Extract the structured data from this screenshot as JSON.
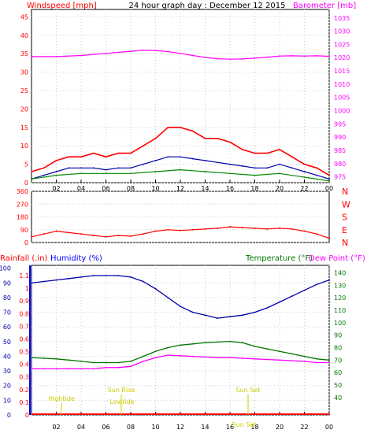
{
  "chart_data": [
    {
      "type": "line",
      "title": "24 hour graph day : December 12 2015",
      "left_axis_label": "Windspeed [mph]",
      "right_axis_label": "Barometer [mb]",
      "x_ticks": [
        "02",
        "04",
        "06",
        "08",
        "10",
        "12",
        "14",
        "16",
        "18",
        "20",
        "22",
        "00"
      ],
      "left_ticks": [
        0,
        5,
        10,
        15,
        20,
        25,
        30,
        35,
        40,
        45
      ],
      "right_ticks": [
        975,
        980,
        985,
        990,
        995,
        1000,
        1005,
        1010,
        1015,
        1020,
        1025,
        1030,
        1035
      ],
      "ylim_left": [
        0,
        47
      ],
      "ylim_right": [
        972.8,
        1038.2
      ],
      "x_range": [
        0,
        24
      ],
      "series": [
        {
          "color": "#ff00ff",
          "axis": "right",
          "x": [
            0,
            2,
            4,
            6,
            8,
            9,
            10,
            11,
            12,
            13,
            14,
            15,
            16,
            17,
            18,
            19,
            20,
            21,
            22,
            23,
            24
          ],
          "y": [
            1020.4,
            1020.4,
            1020.8,
            1021.6,
            1022.4,
            1022.8,
            1022.7,
            1022.3,
            1021.6,
            1020.8,
            1020.1,
            1019.6,
            1019.4,
            1019.5,
            1019.8,
            1020.2,
            1020.6,
            1020.7,
            1020.6,
            1020.7,
            1020.5
          ]
        },
        {
          "color": "#ff0000",
          "axis": "left",
          "x": [
            0,
            1,
            2,
            3,
            4,
            5,
            6,
            7,
            8,
            9,
            10,
            11,
            12,
            13,
            14,
            15,
            16,
            17,
            18,
            19,
            20,
            21,
            22,
            23,
            24
          ],
          "y": [
            3,
            4,
            6,
            7,
            7,
            8,
            7,
            8,
            8,
            10,
            12,
            15,
            15,
            14,
            12,
            12,
            11,
            9,
            8,
            8,
            9,
            7,
            5,
            4,
            2
          ]
        },
        {
          "color": "#0000aa",
          "axis": "left",
          "x": [
            0,
            1,
            2,
            3,
            4,
            5,
            6,
            7,
            8,
            9,
            10,
            11,
            12,
            13,
            14,
            15,
            16,
            17,
            18,
            19,
            20,
            21,
            22,
            23,
            24
          ],
          "y": [
            1,
            2,
            3,
            4,
            4,
            4,
            3.5,
            4,
            4,
            5,
            6,
            7,
            7,
            6.5,
            6,
            5.5,
            5,
            4.5,
            4,
            4,
            5,
            4,
            3,
            2,
            1
          ]
        },
        {
          "color": "#008800",
          "axis": "left",
          "x": [
            0,
            2,
            4,
            6,
            8,
            10,
            12,
            14,
            16,
            18,
            20,
            22,
            24
          ],
          "y": [
            1,
            2,
            2.5,
            2.5,
            2.5,
            3,
            3.5,
            3,
            2.5,
            2,
            2.5,
            1.5,
            0.5
          ]
        }
      ]
    },
    {
      "type": "scatter",
      "left_ticks": [
        0,
        90,
        180,
        270,
        360
      ],
      "right_labels": [
        "N",
        "W",
        "S",
        "E",
        "N"
      ],
      "ylim": [
        0,
        360
      ],
      "x_range": [
        0,
        24
      ],
      "series": [
        {
          "color": "#ff0000",
          "x": [
            0,
            1,
            2,
            3,
            4,
            5,
            6,
            7,
            8,
            9,
            10,
            11,
            12,
            13,
            14,
            15,
            16,
            17,
            18,
            19,
            20,
            21,
            22,
            23,
            24
          ],
          "y": [
            40,
            60,
            80,
            70,
            60,
            50,
            40,
            50,
            45,
            60,
            80,
            90,
            85,
            90,
            95,
            100,
            110,
            105,
            100,
            95,
            100,
            95,
            80,
            60,
            30
          ]
        }
      ]
    },
    {
      "type": "line",
      "left_axis_label_1": "Rainfall (.in)",
      "left_axis_label_2": "Humidity (%)",
      "right_axis_label_1": "Temperature (°F)",
      "right_axis_label_2": "Dew Point (°F)",
      "x_ticks": [
        "02",
        "04",
        "06",
        "08",
        "10",
        "12",
        "14",
        "16",
        "18",
        "20",
        "22",
        "00"
      ],
      "humidity_ticks": [
        0,
        10,
        20,
        30,
        40,
        50,
        60,
        70,
        80,
        90,
        100
      ],
      "rain_ticks": [
        0,
        0.1,
        0.2,
        0.3,
        0.4,
        0.5,
        0.6,
        0.7,
        0.8,
        0.9,
        1,
        1.1
      ],
      "temp_ticks": [
        40,
        50,
        60,
        70,
        80,
        90,
        100,
        110,
        120,
        130,
        140
      ],
      "ylim_humidity": [
        0,
        102
      ],
      "ylim_temp": [
        26,
        146
      ],
      "x_range": [
        0,
        24
      ],
      "annotations": [
        "Sun Rise",
        "Sun Set",
        "Lowtide",
        "Hightide",
        "Sun Set"
      ],
      "series": [
        {
          "color": "#0000aa",
          "axis": "humidity",
          "x": [
            0,
            1,
            2,
            3,
            4,
            5,
            6,
            7,
            8,
            9,
            10,
            11,
            12,
            13,
            14,
            15,
            16,
            17,
            18,
            19,
            20,
            21,
            22,
            23,
            24
          ],
          "y": [
            90,
            91,
            92,
            93,
            94,
            95,
            95,
            95,
            94,
            91,
            86,
            80,
            74,
            70,
            68,
            66,
            67,
            68,
            70,
            73,
            77,
            81,
            85,
            89,
            92
          ]
        },
        {
          "color": "#007700",
          "axis": "temp",
          "x": [
            0,
            1,
            2,
            3,
            4,
            5,
            6,
            7,
            8,
            9,
            10,
            11,
            12,
            13,
            14,
            15,
            16,
            17,
            18,
            19,
            20,
            21,
            22,
            23,
            24
          ],
          "y": [
            72,
            71.5,
            71,
            70,
            69,
            68,
            68,
            68,
            69,
            73,
            77,
            80,
            82,
            83,
            84,
            84.5,
            85,
            84,
            81,
            79,
            77,
            75,
            73,
            71,
            70
          ]
        },
        {
          "color": "#ff00ff",
          "axis": "temp",
          "x": [
            0,
            1,
            2,
            3,
            4,
            5,
            6,
            7,
            8,
            9,
            10,
            11,
            12,
            13,
            14,
            15,
            16,
            17,
            18,
            19,
            20,
            21,
            22,
            23,
            24
          ],
          "y": [
            63,
            63,
            63,
            63,
            63,
            63,
            64,
            64,
            65,
            69,
            72,
            74,
            73.5,
            73,
            72.5,
            72,
            72,
            71.5,
            71,
            70.5,
            70,
            69.5,
            69,
            68,
            68
          ]
        },
        {
          "color": "#ff0000",
          "axis": "rain",
          "x": [
            0,
            24
          ],
          "y": [
            0,
            0
          ]
        }
      ]
    }
  ]
}
